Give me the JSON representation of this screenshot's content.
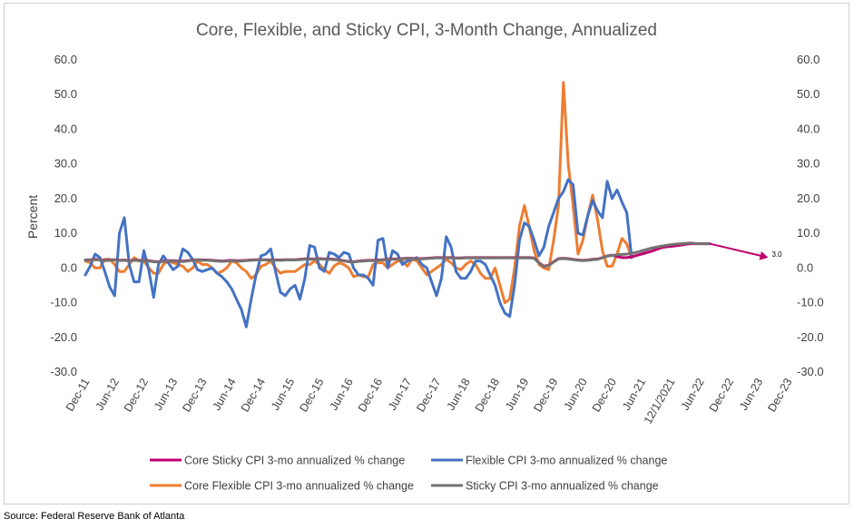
{
  "source": "Source: Federal Reserve Bank of Atlanta",
  "chart_data": {
    "type": "line",
    "title": "Core, Flexible, and Sticky CPI, 3-Month Change, Annualized",
    "ylabel": "Percent",
    "ylim": [
      -30,
      60
    ],
    "yticks": [
      "60.0",
      "50.0",
      "40.0",
      "30.0",
      "20.0",
      "10.0",
      "0.0",
      "-10.0",
      "-20.0",
      "-30.0"
    ],
    "yticks_right": [
      "60.0",
      "50.0",
      "40.0",
      "30.0",
      "20.0",
      "10.0",
      "0.0",
      "-10.0",
      "-20.0",
      "-30.0"
    ],
    "x_categories": [
      "Dec-11",
      "Jun-12",
      "Dec-12",
      "Jun-13",
      "Dec-13",
      "Jun-14",
      "Dec-14",
      "Jun-15",
      "Dec-15",
      "Jun-16",
      "Dec-16",
      "Jun-17",
      "Dec-17",
      "Jun-18",
      "Dec-18",
      "Jun-19",
      "Dec-19",
      "Jun-20",
      "Dec-20",
      "Jun-21",
      "12/1/2021",
      "Jun-22",
      "Dec-22",
      "Jun-23",
      "Dec-23"
    ],
    "grid": false,
    "legend_position": "bottom",
    "annotation": {
      "label": "3.0",
      "color": "#c00070",
      "from": [
        128,
        7.0
      ],
      "to": [
        140,
        3.0
      ]
    },
    "colors": {
      "core_sticky": "#c00070",
      "flexible": "#4472c4",
      "core_flexible": "#ed7d31",
      "sticky": "#767171"
    },
    "series": [
      {
        "key": "core_sticky",
        "name": "Core Sticky CPI 3-mo annualized % change",
        "x_start": 0,
        "values": [
          2.3,
          2.4,
          2.5,
          2.4,
          2.2,
          2.3,
          2.4,
          2.2,
          2.3,
          2.1,
          2.3,
          2.2,
          2.2,
          2.1,
          1.9,
          1.8,
          2.0,
          2.1,
          2.1,
          2.0,
          2.0,
          2.1,
          2.3,
          2.4,
          2.3,
          2.3,
          2.2,
          2.1,
          2.0,
          2.1,
          2.2,
          2.1,
          2.1,
          2.2,
          2.3,
          2.4,
          2.4,
          2.4,
          2.3,
          2.3,
          2.3,
          2.4,
          2.4,
          2.4,
          2.5,
          2.6,
          2.6,
          2.6,
          2.7,
          2.6,
          2.6,
          2.5,
          2.4,
          2.1,
          1.9,
          1.8,
          2.0,
          2.1,
          2.2,
          2.2,
          2.3,
          2.4,
          2.5,
          2.6,
          2.6,
          2.7,
          2.8,
          2.8,
          2.7,
          2.7,
          2.8,
          2.9,
          3.0,
          3.0,
          3.0,
          3.0,
          2.9,
          2.9,
          3.0,
          3.0,
          3.0,
          3.0,
          3.0,
          3.0,
          3.0,
          3.0,
          3.0,
          3.0,
          3.0,
          3.0,
          3.0,
          3.0,
          2.9,
          1.5,
          0.5,
          0.8,
          1.8,
          2.7,
          2.8,
          2.7,
          2.5,
          2.3,
          2.2,
          2.3,
          2.5,
          2.6,
          3.0,
          3.5,
          3.7,
          3.3,
          3.0,
          3.0,
          3.2,
          3.6,
          4.0,
          4.4,
          4.8,
          5.3,
          5.8,
          6.1,
          6.2,
          6.4,
          6.6,
          6.8,
          7.0,
          7.0,
          7.0,
          7.0,
          7.0
        ]
      },
      {
        "key": "flexible",
        "name": "Flexible CPI 3-mo annualized % change",
        "x_start": 0,
        "values": [
          -2.0,
          0.5,
          4.0,
          3.0,
          -1.0,
          -5.5,
          -8.0,
          10.0,
          14.5,
          1.0,
          -4.0,
          -4.0,
          5.0,
          -0.5,
          -8.5,
          1.0,
          3.5,
          1.5,
          -0.5,
          0.5,
          5.5,
          4.5,
          2.5,
          -0.5,
          -1.0,
          -0.5,
          0.0,
          -1.5,
          -2.5,
          -4.0,
          -6.0,
          -9.0,
          -12.0,
          -17.0,
          -9.0,
          -2.0,
          3.5,
          4.0,
          5.5,
          -1.0,
          -7.0,
          -8.0,
          -6.0,
          -5.0,
          -9.0,
          -3.0,
          6.5,
          6.0,
          0.0,
          -1.0,
          4.5,
          4.0,
          3.0,
          4.5,
          4.0,
          0.0,
          -2.0,
          -2.0,
          -3.0,
          -5.0,
          8.0,
          8.5,
          0.0,
          5.0,
          4.0,
          1.0,
          2.0,
          2.5,
          3.0,
          1.0,
          0.0,
          -4.0,
          -8.0,
          -3.0,
          9.0,
          6.0,
          -1.0,
          -3.0,
          -3.0,
          -1.0,
          2.0,
          2.0,
          1.0,
          -2.0,
          -5.0,
          -10.0,
          -13.0,
          -14.0,
          -5.0,
          8.0,
          13.0,
          12.0,
          8.0,
          3.5,
          6.0,
          12.0,
          16.0,
          20.0,
          22.0,
          25.5,
          24.0,
          10.0,
          9.5,
          15.0,
          19.5,
          16.5,
          14.5,
          25.0,
          20.0,
          22.5,
          19.0,
          16.0,
          3.0
        ]
      },
      {
        "key": "core_flexible",
        "name": "Core Flexible CPI 3-mo annualized % change",
        "x_start": 0,
        "values": [
          2.0,
          1.5,
          0.0,
          0.0,
          2.5,
          2.5,
          1.0,
          -1.0,
          -1.0,
          1.0,
          3.0,
          2.0,
          2.0,
          0.0,
          -1.5,
          -1.5,
          1.0,
          2.0,
          1.5,
          1.0,
          0.5,
          -1.0,
          0.0,
          2.0,
          1.0,
          1.0,
          0.0,
          -1.5,
          -1.0,
          0.0,
          2.0,
          1.5,
          0.0,
          -1.0,
          -3.0,
          -2.0,
          0.5,
          1.0,
          2.0,
          0.0,
          -1.5,
          -1.0,
          -1.0,
          -1.0,
          0.0,
          1.0,
          1.0,
          2.0,
          1.0,
          -0.5,
          -1.5,
          0.5,
          1.5,
          1.0,
          0.0,
          -2.5,
          -2.0,
          -2.5,
          -2.5,
          1.0,
          1.5,
          1.5,
          0.0,
          1.0,
          2.0,
          2.0,
          0.5,
          2.5,
          2.0,
          0.0,
          -2.0,
          -1.0,
          0.0,
          1.0,
          2.5,
          1.5,
          0.0,
          -0.5,
          1.0,
          2.0,
          1.0,
          -1.5,
          -3.0,
          -3.0,
          0.0,
          -5.0,
          -10.0,
          -9.0,
          0.0,
          12.0,
          18.0,
          12.0,
          5.0,
          1.0,
          0.0,
          -0.5,
          8.0,
          18.0,
          53.5,
          30.0,
          18.0,
          4.0,
          8.0,
          15.0,
          21.0,
          14.0,
          5.0,
          0.5,
          0.5,
          4.0,
          8.5,
          7.0,
          3.0
        ]
      },
      {
        "key": "sticky",
        "name": "Sticky CPI 3-mo annualized % change",
        "x_start": 0,
        "values": [
          2.2,
          2.3,
          2.4,
          2.3,
          2.1,
          2.2,
          2.3,
          2.1,
          2.2,
          2.0,
          2.2,
          2.1,
          2.1,
          2.0,
          1.8,
          1.7,
          1.9,
          2.0,
          2.0,
          1.9,
          1.9,
          2.0,
          2.2,
          2.3,
          2.2,
          2.2,
          2.1,
          2.0,
          1.9,
          2.0,
          2.1,
          2.0,
          2.0,
          2.1,
          2.2,
          2.3,
          2.3,
          2.3,
          2.2,
          2.2,
          2.2,
          2.3,
          2.3,
          2.3,
          2.4,
          2.5,
          2.5,
          2.5,
          2.6,
          2.5,
          2.5,
          2.4,
          2.3,
          2.0,
          1.8,
          1.7,
          1.9,
          2.0,
          2.1,
          2.1,
          2.2,
          2.3,
          2.4,
          2.5,
          2.5,
          2.6,
          2.7,
          2.7,
          2.6,
          2.6,
          2.7,
          2.8,
          2.9,
          2.9,
          2.9,
          2.9,
          2.8,
          2.8,
          2.9,
          2.9,
          2.9,
          2.9,
          2.9,
          2.9,
          2.9,
          2.9,
          2.9,
          2.9,
          2.9,
          2.9,
          2.9,
          2.9,
          2.8,
          1.4,
          0.4,
          0.7,
          1.7,
          2.6,
          2.7,
          2.6,
          2.4,
          2.2,
          2.1,
          2.2,
          2.4,
          2.5,
          2.9,
          3.4,
          3.6,
          3.8,
          3.9,
          4.0,
          4.2,
          4.5,
          4.9,
          5.3,
          5.7,
          6.0,
          6.3,
          6.5,
          6.7,
          6.9,
          7.0,
          7.1,
          7.2,
          7.1,
          7.0,
          7.0,
          7.0
        ]
      }
    ]
  }
}
